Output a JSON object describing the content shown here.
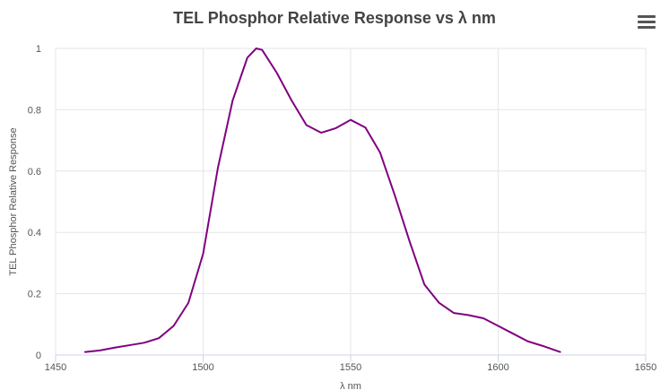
{
  "chart_data": {
    "type": "line",
    "title": "TEL Phosphor Relative Response vs λ nm",
    "xlabel": "λ nm",
    "ylabel": "TEL Phosphor Relative Response",
    "xlim": [
      1450,
      1650
    ],
    "ylim": [
      0,
      1
    ],
    "xticks": [
      "1450",
      "1500",
      "1550",
      "1600",
      "1650"
    ],
    "yticks": [
      "0",
      "0.2",
      "0.4",
      "0.6",
      "0.8",
      "1"
    ],
    "grid": true,
    "series": [
      {
        "color": "#800080",
        "x": [
          1460,
          1465,
          1470,
          1475,
          1480,
          1485,
          1490,
          1495,
          1500,
          1505,
          1510,
          1515,
          1518,
          1520,
          1525,
          1530,
          1535,
          1540,
          1545,
          1550,
          1555,
          1560,
          1565,
          1570,
          1575,
          1580,
          1585,
          1590,
          1595,
          1600,
          1605,
          1610,
          1615,
          1621
        ],
        "y": [
          0.01,
          0.015,
          0.024,
          0.032,
          0.04,
          0.055,
          0.095,
          0.17,
          0.33,
          0.61,
          0.83,
          0.97,
          1.0,
          0.995,
          0.92,
          0.83,
          0.75,
          0.725,
          0.74,
          0.767,
          0.742,
          0.66,
          0.52,
          0.37,
          0.23,
          0.17,
          0.137,
          0.13,
          0.12,
          0.095,
          0.07,
          0.045,
          0.03,
          0.01
        ]
      }
    ]
  },
  "icons": {
    "menu": "hamburger-menu-icon"
  }
}
